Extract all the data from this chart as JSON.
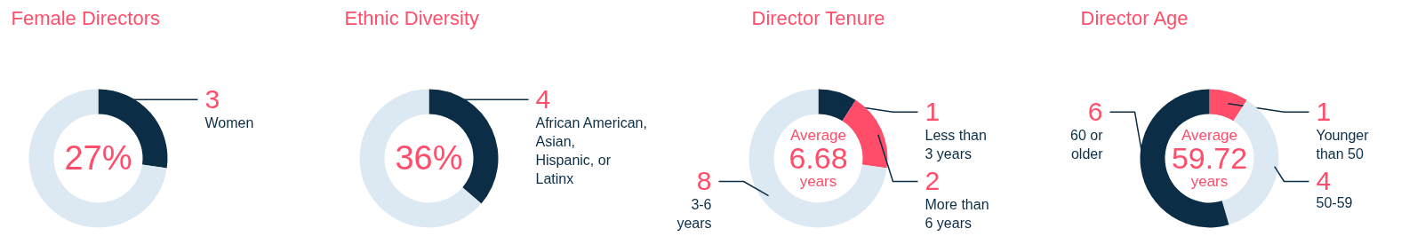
{
  "chart_data": [
    {
      "type": "donut",
      "title": "Female Directors",
      "categories": [
        "Women",
        null
      ],
      "values": [
        3,
        8
      ],
      "colors": [
        "#0b2d45",
        "#dce8f2"
      ],
      "value_labels": [
        "3",
        null
      ],
      "annotations": [
        "27%"
      ],
      "legend": false
    },
    {
      "type": "donut",
      "title": "Ethnic Diversity",
      "categories": [
        "African American,\nAsian,\nHispanic, or\nLatinx",
        null
      ],
      "values": [
        4,
        7
      ],
      "colors": [
        "#0b2d45",
        "#dce8f2"
      ],
      "value_labels": [
        "4",
        null
      ],
      "annotations": [
        "36%"
      ],
      "legend": false
    },
    {
      "type": "donut",
      "title": "Director Tenure",
      "categories": [
        "Less than\n3 years",
        "More than\n6 years",
        "3-6\nyears"
      ],
      "values": [
        1,
        2,
        8
      ],
      "colors": [
        "#0b2d45",
        "#ff4d6a",
        "#dce8f2"
      ],
      "data_labels": true,
      "annotations": [
        "Average",
        "6.68",
        "years"
      ],
      "legend": false
    },
    {
      "type": "donut",
      "title": "Director Age",
      "categories": [
        "Younger\nthan 50",
        "50-59",
        "60 or\nolder"
      ],
      "values": [
        1,
        4,
        6
      ],
      "colors": [
        "#ff4d6a",
        "#dce8f2",
        "#0b2d45"
      ],
      "data_labels": true,
      "annotations": [
        "Average",
        "59.72",
        "years"
      ],
      "legend": false
    }
  ]
}
